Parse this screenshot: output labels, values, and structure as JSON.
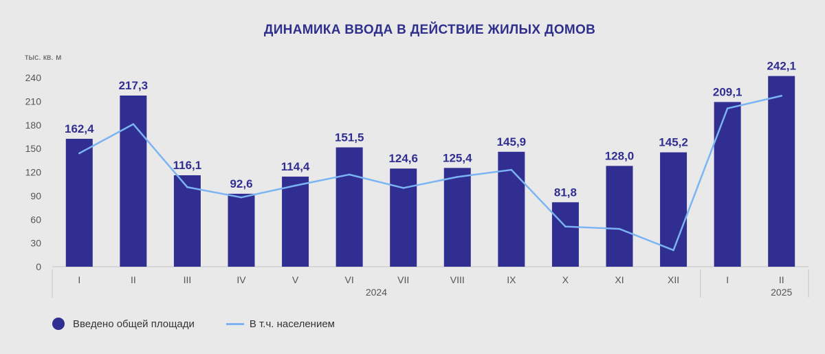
{
  "chart_data": {
    "type": "bar",
    "title": "ДИНАМИКА  ВВОДА  В ДЕЙСТВИЕ  ЖИЛЫХ ДОМОВ",
    "ylabel": "тыс. кв. м",
    "ylim": [
      0,
      240
    ],
    "yticks": [
      "0",
      "30",
      "60",
      "90",
      "120",
      "150",
      "180",
      "210",
      "240"
    ],
    "categories": [
      "I",
      "II",
      "III",
      "IV",
      "V",
      "VI",
      "VII",
      "VIII",
      "IX",
      "X",
      "XI",
      "XII",
      "I",
      "II"
    ],
    "groups": [
      {
        "label": "2024",
        "count": 12
      },
      {
        "label": "2025",
        "count": 2
      }
    ],
    "series": [
      {
        "name": "Введено общей  площади",
        "type": "bar",
        "color": "#312e91",
        "values": [
          162.4,
          217.3,
          116.1,
          92.6,
          114.4,
          151.5,
          124.6,
          125.4,
          145.9,
          81.8,
          128.0,
          145.2,
          209.1,
          242.1
        ],
        "labels": [
          "162,4",
          "217,3",
          "116,1",
          "92,6",
          "114,4",
          "151,5",
          "124,6",
          "125,4",
          "145,9",
          "81,8",
          "128,0",
          "145,2",
          "209,1",
          "242,1"
        ]
      },
      {
        "name": "В т.ч.  населением",
        "type": "line",
        "color": "#7ab4f2",
        "values": [
          144,
          181,
          101,
          88,
          103,
          117,
          100,
          114,
          123,
          51,
          48,
          21,
          201,
          217
        ]
      }
    ],
    "grid": false,
    "legend_position": "bottom-left"
  }
}
